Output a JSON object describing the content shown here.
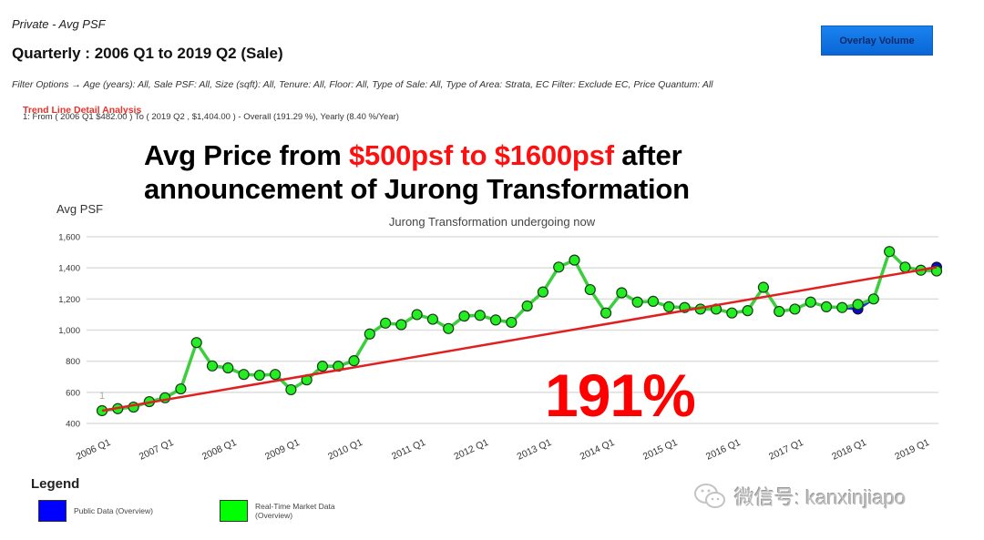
{
  "header": {
    "kicker": "Private - Avg PSF",
    "title": "Quarterly : 2006 Q1 to 2019 Q2 (Sale)",
    "overlay_button": "Overlay Volume",
    "filter_options": "Filter Options → Age (years): All, Sale PSF: All, Size (sqft): All, Tenure: All, Floor: All, Type of Sale: All, Type of Area: Strata, EC Filter: Exclude EC, Price Quantum: All",
    "trend_title": "Trend Line Detail Analysis",
    "trend_detail": "1: From ( 2006 Q1  $482.00 ) To ( 2019 Q2 , $1,404.00 ) - Overall (191.29 %), Yearly (8.40 %/Year)"
  },
  "headline": {
    "part1": "Avg Price from ",
    "highlight": "$500psf to $1600psf",
    "part2": " after",
    "line2": "announcement of Jurong Transformation"
  },
  "annotation": {
    "percent": "191%",
    "trend_marker": "1"
  },
  "legend": {
    "title": "Legend",
    "items": [
      {
        "label_line1": "Public Data (Overview)",
        "label_line2": "",
        "color": "#0000ff"
      },
      {
        "label_line1": "Real-Time Market Data",
        "label_line2": "(Overview)",
        "color": "#00ff00"
      }
    ]
  },
  "watermark": {
    "text": "微信号: kanxinjiapo"
  },
  "colors": {
    "market_line": "#3ccf3c",
    "market_marker": "#22ee22",
    "public_marker": "#0a0ac8",
    "trend_line": "#e02020",
    "grid": "#dddddd"
  },
  "chart_data": {
    "type": "line",
    "title": "Jurong Transformation undergoing now",
    "xlabel": "",
    "ylabel": "Avg PSF",
    "ylim": [
      400,
      1600
    ],
    "yticks": [
      400,
      600,
      800,
      1000,
      1200,
      1400,
      1600
    ],
    "ytick_labels": [
      "400",
      "600",
      "800",
      "1,000",
      "1,200",
      "1,400",
      "1,600"
    ],
    "grid": true,
    "legend_position": "bottom-left",
    "xtick_labels": [
      "2006 Q1",
      "2007 Q1",
      "2008 Q1",
      "2009 Q1",
      "2010 Q1",
      "2011 Q1",
      "2012 Q1",
      "2013 Q1",
      "2014 Q1",
      "2015 Q1",
      "2016 Q1",
      "2017 Q1",
      "2018 Q1",
      "2019 Q1"
    ],
    "x": [
      "2006 Q1",
      "2006 Q2",
      "2006 Q3",
      "2006 Q4",
      "2007 Q1",
      "2007 Q2",
      "2007 Q3",
      "2007 Q4",
      "2008 Q1",
      "2008 Q2",
      "2008 Q3",
      "2008 Q4",
      "2009 Q1",
      "2009 Q2",
      "2009 Q3",
      "2009 Q4",
      "2010 Q1",
      "2010 Q2",
      "2010 Q3",
      "2010 Q4",
      "2011 Q1",
      "2011 Q2",
      "2011 Q3",
      "2011 Q4",
      "2012 Q1",
      "2012 Q2",
      "2012 Q3",
      "2012 Q4",
      "2013 Q1",
      "2013 Q2",
      "2013 Q3",
      "2013 Q4",
      "2014 Q1",
      "2014 Q2",
      "2014 Q3",
      "2014 Q4",
      "2015 Q1",
      "2015 Q2",
      "2015 Q3",
      "2015 Q4",
      "2016 Q1",
      "2016 Q2",
      "2016 Q3",
      "2016 Q4",
      "2017 Q1",
      "2017 Q2",
      "2017 Q3",
      "2017 Q4",
      "2018 Q1",
      "2018 Q2",
      "2018 Q3",
      "2018 Q4",
      "2019 Q1",
      "2019 Q2"
    ],
    "series": [
      {
        "name": "Real-Time Market Data (Overview)",
        "color": "#00ff00",
        "values": [
          482,
          495,
          505,
          540,
          565,
          622,
          920,
          770,
          757,
          715,
          710,
          715,
          617,
          680,
          768,
          768,
          803,
          975,
          1045,
          1035,
          1100,
          1070,
          1010,
          1090,
          1095,
          1065,
          1050,
          1155,
          1245,
          1405,
          1450,
          1260,
          1110,
          1240,
          1180,
          1185,
          1150,
          1145,
          1135,
          1135,
          1110,
          1125,
          1275,
          1120,
          1135,
          1180,
          1150,
          1145,
          1165,
          1200,
          1505,
          1405,
          1385,
          1380
        ]
      },
      {
        "name": "Public Data (Overview)",
        "color": "#0000ff",
        "values": [
          482,
          495,
          505,
          540,
          565,
          622,
          920,
          770,
          757,
          715,
          710,
          715,
          617,
          680,
          768,
          768,
          803,
          975,
          1045,
          1035,
          1100,
          1070,
          1010,
          1090,
          1095,
          1065,
          1050,
          1155,
          1245,
          1405,
          1450,
          1260,
          1110,
          1240,
          1180,
          1185,
          1150,
          1145,
          1135,
          1135,
          1110,
          1125,
          1275,
          1120,
          1135,
          1180,
          1150,
          1145,
          1135,
          1200,
          1505,
          1405,
          1385,
          1405
        ]
      },
      {
        "name": "Trend Line 1",
        "color": "#e02020",
        "values_endpoints": {
          "start": {
            "x": "2006 Q1",
            "y": 482
          },
          "end": {
            "x": "2019 Q2",
            "y": 1404
          }
        }
      }
    ],
    "annotations": [
      "191%",
      "Avg Price from $500psf to $1600psf after announcement of Jurong Transformation"
    ]
  }
}
